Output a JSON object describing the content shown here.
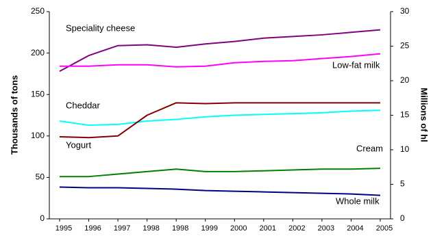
{
  "chart_data": {
    "type": "line",
    "categories": [
      "1995",
      "1996",
      "1997",
      "1998",
      "1998",
      "1999",
      "2000",
      "2001",
      "2002",
      "2003",
      "2004",
      "2005"
    ],
    "ylabel": "Thousands of tons",
    "y2label": "Millions of hl",
    "ylim": [
      0,
      250
    ],
    "yticks": [
      0,
      50,
      100,
      150,
      200,
      250
    ],
    "y2lim": [
      0,
      30
    ],
    "y2ticks": [
      0,
      5,
      10,
      15,
      20,
      25,
      30
    ],
    "grid": false,
    "series": [
      {
        "name": "Speciality cheese",
        "color": "#800080",
        "values": [
          178,
          197,
          209,
          210,
          207,
          211,
          214,
          218,
          220,
          222,
          225,
          228
        ]
      },
      {
        "name": "Low-fat milk",
        "color": "#ff00ff",
        "axis": "y2",
        "values": [
          22.1,
          22.1,
          22.3,
          22.3,
          22.0,
          22.1,
          22.6,
          22.8,
          22.9,
          23.2,
          23.5,
          23.9
        ]
      },
      {
        "name": "Cheddar",
        "color": "#00ffff",
        "values": [
          118,
          113,
          114,
          118,
          120,
          123,
          125,
          126,
          127,
          128,
          130,
          131
        ]
      },
      {
        "name": "Yogurt",
        "color": "#800000",
        "values": [
          99,
          98,
          100,
          125,
          140,
          139,
          140,
          140,
          140,
          140,
          140,
          140
        ]
      },
      {
        "name": "Cream",
        "color": "#008000",
        "values": [
          51,
          51,
          54,
          57,
          60,
          57,
          57,
          58,
          59,
          60,
          60,
          61
        ]
      },
      {
        "name": "Whole milk",
        "color": "#000080",
        "axis": "y2",
        "values": [
          4.6,
          4.5,
          4.5,
          4.4,
          4.3,
          4.1,
          4.0,
          3.9,
          3.8,
          3.7,
          3.6,
          3.4
        ]
      }
    ]
  }
}
